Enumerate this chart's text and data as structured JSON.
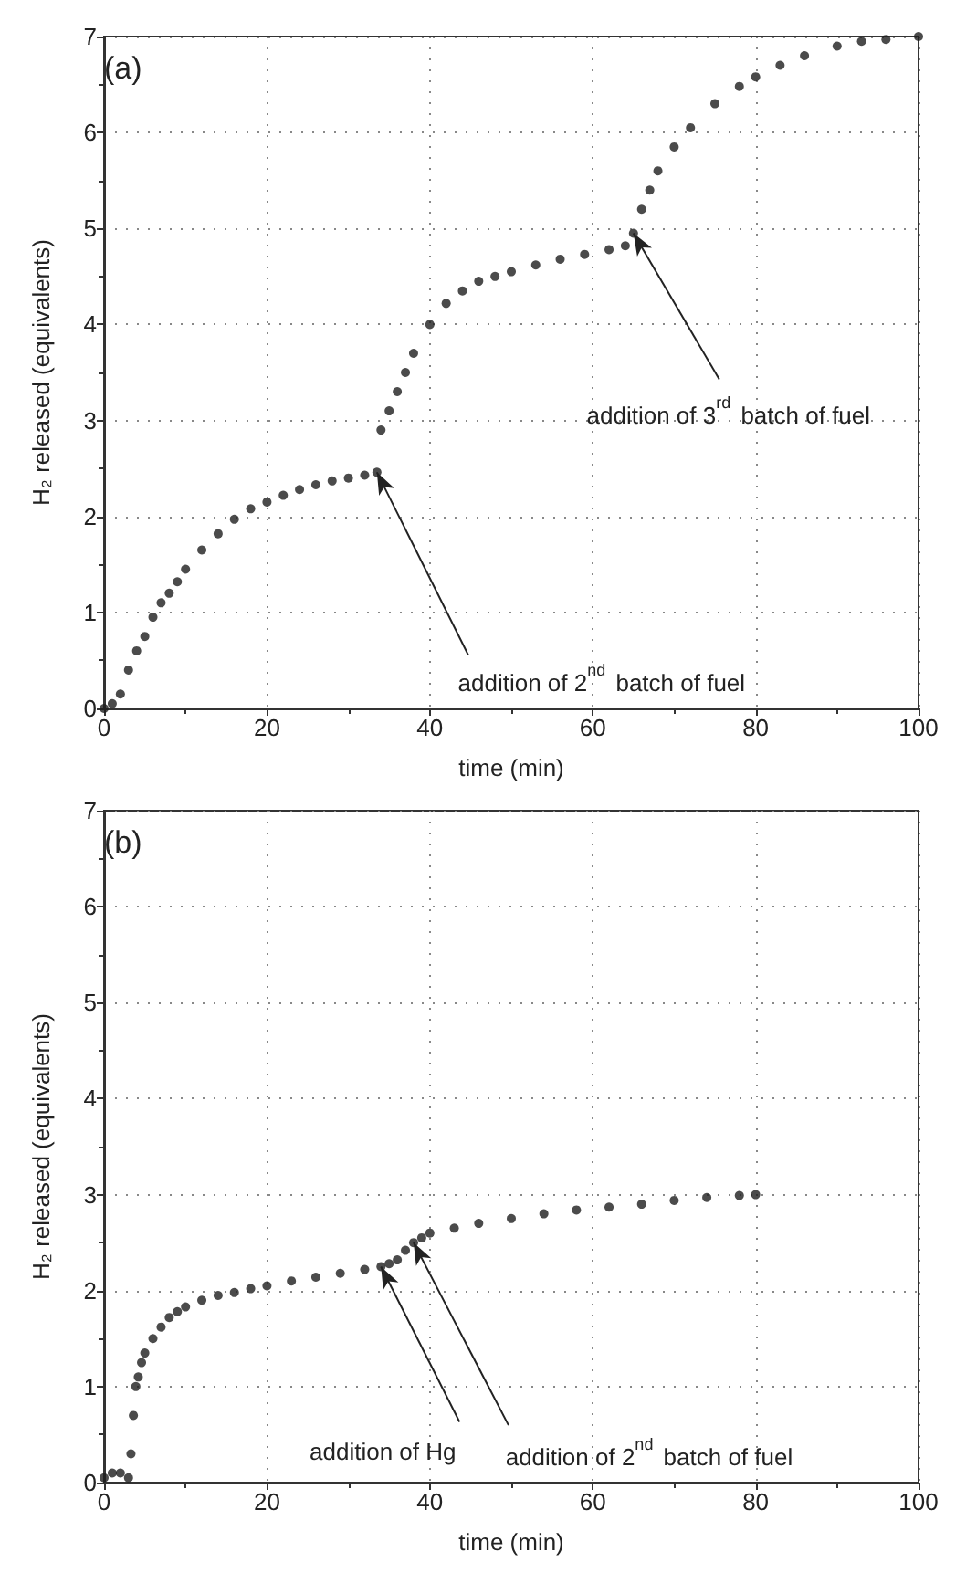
{
  "chart_data": [
    {
      "type": "scatter",
      "title": "(a)",
      "xlabel": "time (min)",
      "ylabel": "H₂ released (equivalents)",
      "color": "#1e1e1e",
      "marker": "circle",
      "grid": true,
      "x": [
        0,
        1,
        2,
        3,
        4,
        5,
        6,
        7,
        8,
        9,
        10,
        12,
        14,
        16,
        18,
        20,
        22,
        24,
        26,
        28,
        30,
        32,
        33.5,
        34,
        35,
        36,
        37,
        38,
        40,
        42,
        44,
        46,
        48,
        50,
        53,
        56,
        59,
        62,
        64,
        65,
        66,
        67,
        68,
        70,
        72,
        75,
        78,
        80,
        83,
        86,
        90,
        93,
        96,
        100
      ],
      "values": [
        0,
        0.05,
        0.15,
        0.4,
        0.6,
        0.75,
        0.95,
        1.1,
        1.2,
        1.32,
        1.45,
        1.65,
        1.82,
        1.97,
        2.08,
        2.15,
        2.22,
        2.28,
        2.33,
        2.37,
        2.4,
        2.43,
        2.46,
        2.9,
        3.1,
        3.3,
        3.5,
        3.7,
        4.0,
        4.22,
        4.35,
        4.45,
        4.5,
        4.55,
        4.62,
        4.68,
        4.73,
        4.78,
        4.82,
        4.95,
        5.2,
        5.4,
        5.6,
        5.85,
        6.05,
        6.3,
        6.48,
        6.58,
        6.7,
        6.8,
        6.9,
        6.95,
        6.97,
        7.0
      ],
      "xlim": [
        0,
        100
      ],
      "ylim": [
        0,
        7
      ],
      "xticks": [
        0,
        20,
        40,
        60,
        80,
        100
      ],
      "yticks": [
        0,
        1,
        2,
        3,
        4,
        5,
        6,
        7
      ],
      "annotations": [
        {
          "text": "addition of 2$^{nd}$ batch of fuel",
          "x": 33.5,
          "y": 2.46
        },
        {
          "text": "addition of 3$^{rd}$ batch of fuel",
          "x": 65,
          "y": 4.95
        }
      ]
    },
    {
      "type": "scatter",
      "title": "(b)",
      "xlabel": "time (min)",
      "ylabel": "H₂ released (equivalents)",
      "color": "#1e1e1e",
      "marker": "circle",
      "grid": true,
      "x": [
        0,
        1,
        2,
        3,
        3.3,
        3.6,
        3.9,
        4.2,
        4.6,
        5,
        6,
        7,
        8,
        9,
        10,
        12,
        14,
        16,
        18,
        20,
        23,
        26,
        29,
        32,
        34,
        35,
        36,
        37,
        38,
        39,
        40,
        43,
        46,
        50,
        54,
        58,
        62,
        66,
        70,
        74,
        78,
        80
      ],
      "values": [
        0.05,
        0.1,
        0.1,
        0.05,
        0.3,
        0.7,
        1.0,
        1.1,
        1.25,
        1.35,
        1.5,
        1.62,
        1.72,
        1.78,
        1.83,
        1.9,
        1.95,
        1.98,
        2.02,
        2.05,
        2.1,
        2.14,
        2.18,
        2.22,
        2.25,
        2.28,
        2.32,
        2.42,
        2.5,
        2.55,
        2.6,
        2.65,
        2.7,
        2.75,
        2.8,
        2.84,
        2.87,
        2.9,
        2.94,
        2.97,
        2.99,
        3.0
      ],
      "xlim": [
        0,
        100
      ],
      "ylim": [
        0,
        7
      ],
      "xticks": [
        0,
        20,
        40,
        60,
        80,
        100
      ],
      "yticks": [
        0,
        1,
        2,
        3,
        4,
        5,
        6,
        7
      ],
      "annotations": [
        {
          "text": "addition of Hg",
          "x": 34,
          "y": 2.25
        },
        {
          "text": "addition of 2$^{nd}$ batch of fuel",
          "x": 38,
          "y": 2.5
        }
      ]
    }
  ]
}
